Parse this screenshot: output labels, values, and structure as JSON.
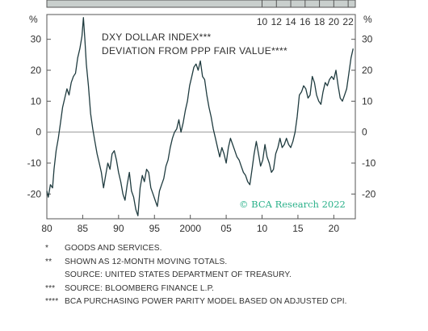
{
  "chart_data": {
    "type": "line",
    "title": "",
    "annotation_lines": [
      "DXY DOLLAR INDEX***",
      "DEVIATION FROM PPP FAIR VALUE****"
    ],
    "credit": "© BCA Research 2022",
    "y_unit": "%",
    "xlim": [
      1980,
      2023
    ],
    "ylim": [
      -28,
      38
    ],
    "yticks": [
      30,
      20,
      10,
      0,
      -10,
      -20
    ],
    "bottom_ticks": [
      1980,
      1985,
      1990,
      1995,
      2000,
      2005,
      2010,
      2015,
      2020
    ],
    "bottom_tick_labels": [
      "80",
      "85",
      "90",
      "95",
      "2000",
      "05",
      "10",
      "15",
      "20"
    ],
    "top_ticks": [
      2010,
      2012,
      2014,
      2016,
      2018,
      2020,
      2022
    ],
    "top_tick_labels": [
      "10",
      "12",
      "14",
      "16",
      "18",
      "20",
      "22"
    ],
    "zero_line": true,
    "series": [
      {
        "color": "#1f3b3f",
        "points": [
          [
            1980.0,
            -19
          ],
          [
            1980.2,
            -21
          ],
          [
            1980.5,
            -17
          ],
          [
            1980.8,
            -18
          ],
          [
            1981.0,
            -12
          ],
          [
            1981.3,
            -6
          ],
          [
            1981.6,
            -2
          ],
          [
            1981.9,
            3
          ],
          [
            1982.2,
            8
          ],
          [
            1982.5,
            11
          ],
          [
            1982.8,
            14
          ],
          [
            1983.1,
            12
          ],
          [
            1983.4,
            16
          ],
          [
            1983.7,
            18
          ],
          [
            1984.0,
            19
          ],
          [
            1984.3,
            24
          ],
          [
            1984.6,
            27
          ],
          [
            1984.9,
            31
          ],
          [
            1985.1,
            37
          ],
          [
            1985.3,
            30
          ],
          [
            1985.5,
            22
          ],
          [
            1985.8,
            15
          ],
          [
            1986.1,
            6
          ],
          [
            1986.4,
            1
          ],
          [
            1986.7,
            -3
          ],
          [
            1987.0,
            -7
          ],
          [
            1987.3,
            -10
          ],
          [
            1987.6,
            -13
          ],
          [
            1987.9,
            -18
          ],
          [
            1988.2,
            -14
          ],
          [
            1988.5,
            -10
          ],
          [
            1988.8,
            -12
          ],
          [
            1989.1,
            -7
          ],
          [
            1989.4,
            -6
          ],
          [
            1989.7,
            -9
          ],
          [
            1990.0,
            -13
          ],
          [
            1990.3,
            -16
          ],
          [
            1990.6,
            -20
          ],
          [
            1990.9,
            -22
          ],
          [
            1991.2,
            -17
          ],
          [
            1991.5,
            -13
          ],
          [
            1991.8,
            -19
          ],
          [
            1992.1,
            -21
          ],
          [
            1992.4,
            -25
          ],
          [
            1992.7,
            -27
          ],
          [
            1993.0,
            -18
          ],
          [
            1993.3,
            -14
          ],
          [
            1993.6,
            -16
          ],
          [
            1993.9,
            -12
          ],
          [
            1994.2,
            -13
          ],
          [
            1994.5,
            -18
          ],
          [
            1994.8,
            -20
          ],
          [
            1995.1,
            -22
          ],
          [
            1995.4,
            -24
          ],
          [
            1995.7,
            -19
          ],
          [
            1996.0,
            -17
          ],
          [
            1996.3,
            -15
          ],
          [
            1996.6,
            -11
          ],
          [
            1996.9,
            -9
          ],
          [
            1997.2,
            -5
          ],
          [
            1997.5,
            -2
          ],
          [
            1997.8,
            0
          ],
          [
            1998.1,
            1
          ],
          [
            1998.4,
            4
          ],
          [
            1998.7,
            0
          ],
          [
            1999.0,
            3
          ],
          [
            1999.3,
            7
          ],
          [
            1999.6,
            10
          ],
          [
            1999.9,
            15
          ],
          [
            2000.2,
            18
          ],
          [
            2000.5,
            21
          ],
          [
            2000.8,
            22
          ],
          [
            2001.1,
            20
          ],
          [
            2001.4,
            23
          ],
          [
            2001.7,
            18
          ],
          [
            2002.0,
            17
          ],
          [
            2002.3,
            12
          ],
          [
            2002.6,
            8
          ],
          [
            2002.9,
            5
          ],
          [
            2003.2,
            1
          ],
          [
            2003.5,
            -2
          ],
          [
            2003.8,
            -5
          ],
          [
            2004.1,
            -8
          ],
          [
            2004.4,
            -5
          ],
          [
            2004.7,
            -7
          ],
          [
            2005.0,
            -10
          ],
          [
            2005.3,
            -5
          ],
          [
            2005.6,
            -2
          ],
          [
            2005.9,
            -4
          ],
          [
            2006.2,
            -6
          ],
          [
            2006.5,
            -8
          ],
          [
            2006.8,
            -9
          ],
          [
            2007.1,
            -11
          ],
          [
            2007.4,
            -13
          ],
          [
            2007.7,
            -14
          ],
          [
            2008.0,
            -16
          ],
          [
            2008.3,
            -17
          ],
          [
            2008.6,
            -12
          ],
          [
            2008.9,
            -7
          ],
          [
            2009.2,
            -3
          ],
          [
            2009.5,
            -7
          ],
          [
            2009.8,
            -11
          ],
          [
            2010.1,
            -9
          ],
          [
            2010.4,
            -4
          ],
          [
            2010.7,
            -8
          ],
          [
            2011.0,
            -10
          ],
          [
            2011.3,
            -13
          ],
          [
            2011.6,
            -12
          ],
          [
            2011.9,
            -7
          ],
          [
            2012.2,
            -5
          ],
          [
            2012.5,
            -2
          ],
          [
            2012.8,
            -5
          ],
          [
            2013.1,
            -4
          ],
          [
            2013.4,
            -2
          ],
          [
            2013.7,
            -4
          ],
          [
            2014.0,
            -5
          ],
          [
            2014.3,
            -3
          ],
          [
            2014.6,
            0
          ],
          [
            2014.9,
            5
          ],
          [
            2015.2,
            12
          ],
          [
            2015.5,
            13
          ],
          [
            2015.8,
            15
          ],
          [
            2016.1,
            14
          ],
          [
            2016.4,
            11
          ],
          [
            2016.7,
            12
          ],
          [
            2017.0,
            18
          ],
          [
            2017.3,
            16
          ],
          [
            2017.6,
            12
          ],
          [
            2017.9,
            10
          ],
          [
            2018.2,
            9
          ],
          [
            2018.5,
            13
          ],
          [
            2018.8,
            16
          ],
          [
            2019.1,
            15
          ],
          [
            2019.4,
            17
          ],
          [
            2019.7,
            18
          ],
          [
            2020.0,
            17
          ],
          [
            2020.3,
            20
          ],
          [
            2020.6,
            15
          ],
          [
            2020.9,
            11
          ],
          [
            2021.2,
            10
          ],
          [
            2021.5,
            12
          ],
          [
            2021.8,
            14
          ],
          [
            2022.1,
            19
          ],
          [
            2022.4,
            24
          ],
          [
            2022.7,
            27
          ]
        ]
      }
    ]
  },
  "footnotes": [
    {
      "marker": "*",
      "text": "GOODS AND SERVICES."
    },
    {
      "marker": "**",
      "text": "SHOWN AS 12-MONTH MOVING TOTALS."
    },
    {
      "marker": "",
      "text": "SOURCE: UNITED STATES DEPARTMENT OF TREASURY."
    },
    {
      "marker": "***",
      "text": "SOURCE: BLOOMBERG FINANCE L.P."
    },
    {
      "marker": "****",
      "text": "BCA PURCHASING POWER PARITY MODEL BASED ON ADJUSTED CPI."
    }
  ]
}
